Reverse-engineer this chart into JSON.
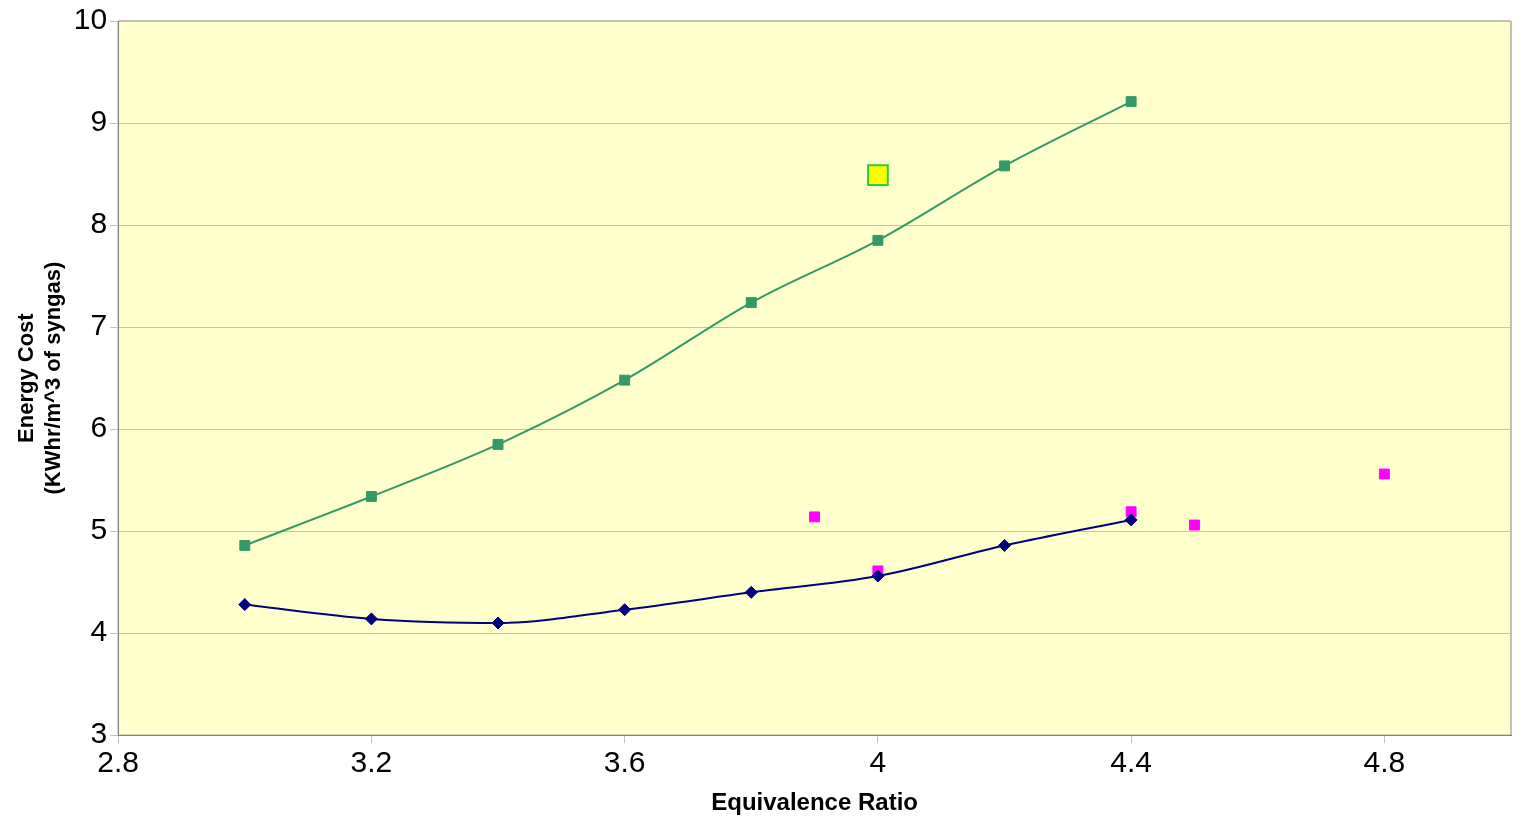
{
  "chart_data": {
    "type": "line",
    "xlabel": "Equivalence Ratio",
    "ylabel": "Energy Cost\n(KWhr/m^3 of syngas)",
    "xlim": [
      2.8,
      5.0
    ],
    "xticks": [
      2.8,
      3.2,
      3.6,
      4,
      4.4,
      4.8
    ],
    "ylim": [
      3,
      10
    ],
    "yticks": [
      3,
      4,
      5,
      6,
      7,
      8,
      9,
      10
    ],
    "grid": "y",
    "legend": false,
    "series": [
      {
        "type": "line",
        "marker": "square",
        "color": "#339966",
        "x": [
          3.0,
          3.2,
          3.4,
          3.6,
          3.8,
          4.0,
          4.2,
          4.4
        ],
        "values": [
          4.86,
          5.34,
          5.85,
          6.48,
          7.24,
          7.85,
          8.58,
          9.21
        ]
      },
      {
        "type": "line",
        "marker": "diamond",
        "color": "#000080",
        "x": [
          3.0,
          3.2,
          3.4,
          3.6,
          3.8,
          4.0,
          4.2,
          4.4
        ],
        "values": [
          4.28,
          4.14,
          4.1,
          4.23,
          4.4,
          4.56,
          4.86,
          5.11
        ]
      },
      {
        "type": "scatter",
        "marker": "square",
        "color": "#ff00ff",
        "x": [
          3.9,
          4.0,
          4.4,
          4.5,
          4.8
        ],
        "values": [
          5.14,
          4.61,
          5.19,
          5.06,
          5.56
        ]
      },
      {
        "type": "scatter",
        "marker": "square",
        "color": "#ffff00",
        "x": [
          4.0
        ],
        "values": [
          8.49
        ]
      }
    ]
  }
}
